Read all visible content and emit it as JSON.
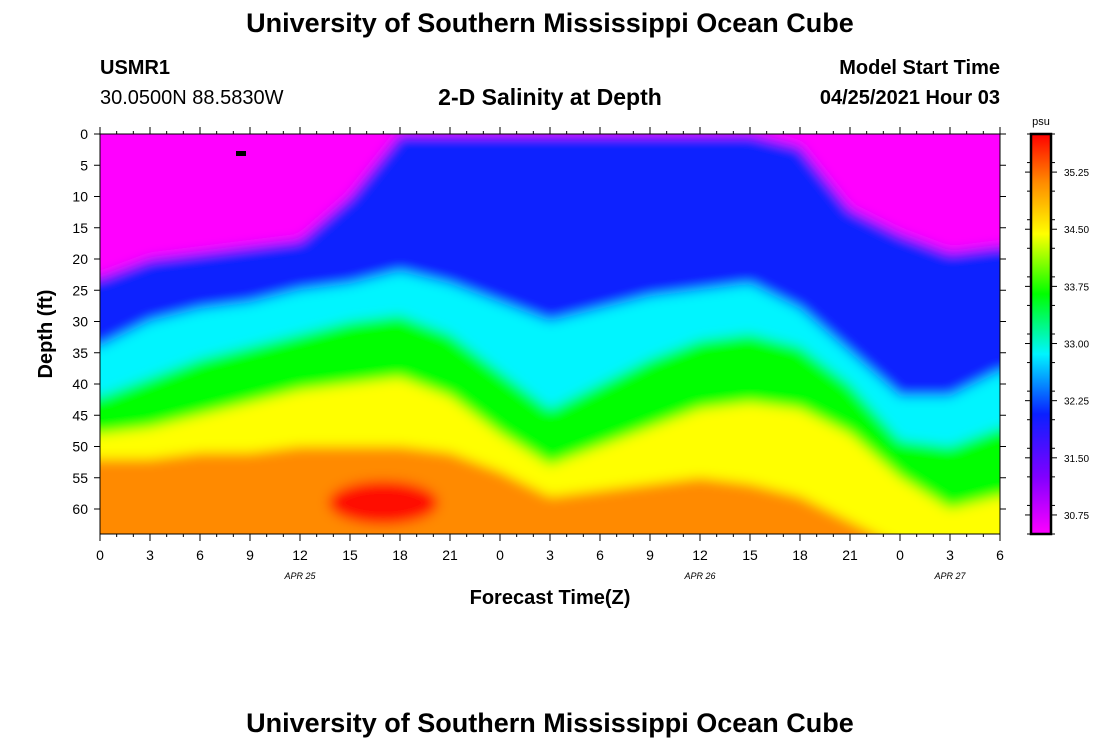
{
  "header": {
    "title": "University of Southern Mississippi Ocean Cube",
    "footer_title": "University of Southern Mississippi Ocean Cube",
    "station_id": "USMR1",
    "coordinates": "30.0500N  88.5830W",
    "plot_title": "2-D Salinity at Depth",
    "start_label": "Model Start Time",
    "start_value": "04/25/2021 Hour 03"
  },
  "chart_data": {
    "type": "heatmap",
    "title": "2-D Salinity at Depth",
    "xlabel": "Forecast Time(Z)",
    "ylabel": "Depth (ft)",
    "x_hours": [
      0,
      3,
      6,
      9,
      12,
      15,
      18,
      21,
      24,
      27,
      30,
      33,
      36,
      39,
      42,
      45,
      48,
      51,
      54
    ],
    "x_tick_labels": [
      "0",
      "3",
      "6",
      "9",
      "12",
      "15",
      "18",
      "21",
      "0",
      "3",
      "6",
      "9",
      "12",
      "15",
      "18",
      "21",
      "0",
      "3",
      "6"
    ],
    "x_range": [
      0,
      54
    ],
    "date_labels": [
      {
        "label": "APR 25",
        "hour": 12
      },
      {
        "label": "APR 26",
        "hour": 36
      },
      {
        "label": "APR 27",
        "hour": 51
      }
    ],
    "y_ticks": [
      0,
      5,
      10,
      15,
      20,
      25,
      30,
      35,
      40,
      45,
      50,
      55,
      60
    ],
    "y_range": [
      0,
      64
    ],
    "isohaline_depth_ft": {
      "hours": [
        0,
        3,
        6,
        9,
        12,
        15,
        18,
        21,
        24,
        27,
        30,
        33,
        36,
        39,
        42,
        45,
        48,
        51,
        54
      ],
      "s_32_0": [
        23,
        20,
        19,
        18,
        17,
        10,
        0,
        0,
        0,
        0,
        0,
        0,
        0,
        0,
        2,
        12,
        16,
        19,
        18
      ],
      "s_33_0": [
        34,
        30,
        28,
        27,
        25,
        24,
        22,
        24,
        27,
        30,
        28,
        26,
        25,
        24,
        28,
        35,
        42,
        42,
        38
      ],
      "s_34_0": [
        42,
        39,
        36,
        34,
        32,
        30,
        29,
        32,
        38,
        44,
        40,
        36,
        33,
        32,
        34,
        40,
        49,
        50,
        47
      ],
      "s_34_75": [
        48,
        47,
        45,
        43,
        41,
        40,
        39,
        42,
        48,
        53,
        50,
        47,
        44,
        43,
        44,
        48,
        55,
        60,
        58
      ],
      "s_35_5": [
        52,
        52,
        51,
        51,
        50,
        50,
        50,
        51,
        54,
        58,
        57,
        56,
        55,
        56,
        58,
        62,
        66,
        68,
        68
      ]
    },
    "colorbar": {
      "unit": "psu",
      "min": 30.5,
      "max": 35.75,
      "tick_values": [
        30.75,
        31.5,
        32.25,
        33.0,
        33.75,
        34.5,
        35.25
      ],
      "tick_labels": [
        "30.75",
        "31.50",
        "32.25",
        "33.00",
        "33.75",
        "34.50",
        "35.25"
      ]
    },
    "colors": {
      "magenta": "#ff00ff",
      "purple": "#8000ff",
      "blue": "#0a20ff",
      "cyan": "#00f5ff",
      "green": "#00ff00",
      "yellow": "#ffff00",
      "orange": "#ff8a00",
      "red": "#ff0000"
    }
  }
}
